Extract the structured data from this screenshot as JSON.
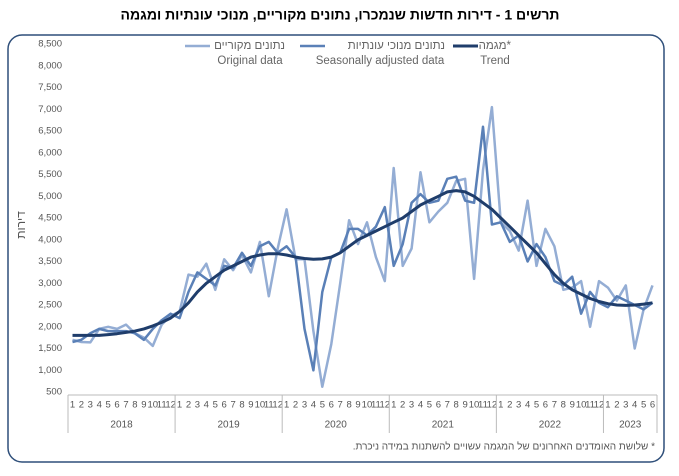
{
  "chart_data": {
    "type": "line",
    "title": "תרשים 1 - דירות חדשות שנמכרו, נתונים מקוריים, מנוכי עונתיות ומגמה",
    "y_label": "דירות",
    "footnote": "* שלושת האומדנים האחרונים של המגמה עשויים להשתנות במידה ניכרת.",
    "categories": [
      "1",
      "2",
      "3",
      "4",
      "5",
      "6",
      "7",
      "8",
      "9",
      "10",
      "11",
      "12",
      "1",
      "2",
      "3",
      "4",
      "5",
      "6",
      "7",
      "8",
      "9",
      "10",
      "11",
      "12",
      "1",
      "2",
      "3",
      "4",
      "5",
      "6",
      "7",
      "8",
      "9",
      "10",
      "11",
      "12",
      "1",
      "2",
      "3",
      "4",
      "5",
      "6",
      "7",
      "8",
      "9",
      "10",
      "11",
      "12",
      "1",
      "2",
      "3",
      "4",
      "5",
      "6",
      "7",
      "8",
      "9",
      "10",
      "11",
      "12",
      "1",
      "2",
      "3",
      "4",
      "5",
      "6"
    ],
    "years": [
      "2018",
      "2019",
      "2020",
      "2021",
      "2022",
      "2023"
    ],
    "ylim": [
      500,
      8500
    ],
    "yticks": [
      500,
      {
        "value": 1000,
        "label": "1,000"
      },
      {
        "value": 1500,
        "label": "1,500"
      },
      {
        "value": 2000,
        "label": "2,000"
      },
      {
        "value": 2500,
        "label": "2,500"
      },
      {
        "value": 3000,
        "label": "3,000"
      },
      {
        "value": 3500,
        "label": "3,500"
      },
      {
        "value": 4000,
        "label": "4,000"
      },
      {
        "value": 4500,
        "label": "4,500"
      },
      {
        "value": 5000,
        "label": "5,000"
      },
      {
        "value": 5500,
        "label": "5,500"
      },
      {
        "value": 6000,
        "label": "6,000"
      },
      {
        "value": 6500,
        "label": "6,500"
      },
      {
        "value": 7000,
        "label": "7,000"
      },
      {
        "value": 7500,
        "label": "7,500"
      },
      {
        "value": 8000,
        "label": "8,000"
      },
      {
        "value": 8500,
        "label": "8,500"
      }
    ],
    "grid": false,
    "series": [
      {
        "name": "נתונים מקוריים",
        "name_en": "Original data",
        "color": "#94add4",
        "values": [
          1700,
          1650,
          1640,
          1950,
          2000,
          1950,
          2050,
          1850,
          1750,
          1560,
          2050,
          2250,
          2350,
          3200,
          3150,
          3450,
          2850,
          3550,
          3300,
          3650,
          3250,
          3950,
          2700,
          3800,
          4700,
          3550,
          3550,
          1900,
          620,
          1600,
          3000,
          4450,
          3900,
          4400,
          3600,
          3050,
          5650,
          3400,
          3800,
          5550,
          4400,
          4650,
          4850,
          5350,
          5400,
          3100,
          5600,
          7050,
          4400,
          4200,
          3750,
          4900,
          3400,
          4250,
          3850,
          2850,
          2900,
          3050,
          2000,
          3050,
          2900,
          2600,
          2950,
          1500,
          2400,
          2950
        ]
      },
      {
        "name": "נתונים מנוכי עונתיות",
        "name_en": "Seasonally adjusted data",
        "color": "#5a80b7",
        "values": [
          1650,
          1700,
          1850,
          1950,
          1900,
          1900,
          1900,
          1850,
          1700,
          1950,
          2150,
          2300,
          2200,
          2800,
          3250,
          3100,
          2950,
          3400,
          3350,
          3700,
          3400,
          3850,
          3950,
          3700,
          3850,
          3600,
          1950,
          1000,
          2800,
          3600,
          3700,
          4250,
          4250,
          4100,
          4300,
          4750,
          3400,
          3900,
          4850,
          5050,
          4850,
          4900,
          5400,
          5450,
          4900,
          4850,
          6600,
          4350,
          4400,
          3950,
          4100,
          3500,
          3900,
          3600,
          3050,
          2950,
          3150,
          2300,
          2800,
          2550,
          2450,
          2700,
          2600,
          2500,
          2400,
          2550
        ]
      },
      {
        "name": "מגמה*",
        "name_en": "Trend",
        "color": "#1f3d6b",
        "values": [
          1800,
          1800,
          1800,
          1800,
          1820,
          1840,
          1870,
          1900,
          1950,
          2020,
          2100,
          2200,
          2350,
          2550,
          2800,
          3000,
          3150,
          3300,
          3400,
          3500,
          3600,
          3650,
          3680,
          3680,
          3650,
          3600,
          3570,
          3550,
          3560,
          3600,
          3700,
          3850,
          4000,
          4100,
          4200,
          4300,
          4400,
          4500,
          4650,
          4800,
          4900,
          5000,
          5100,
          5130,
          5100,
          5000,
          4850,
          4700,
          4500,
          4300,
          4100,
          3900,
          3700,
          3450,
          3200,
          3000,
          2850,
          2750,
          2650,
          2580,
          2530,
          2500,
          2490,
          2500,
          2520,
          2550
        ]
      }
    ]
  }
}
